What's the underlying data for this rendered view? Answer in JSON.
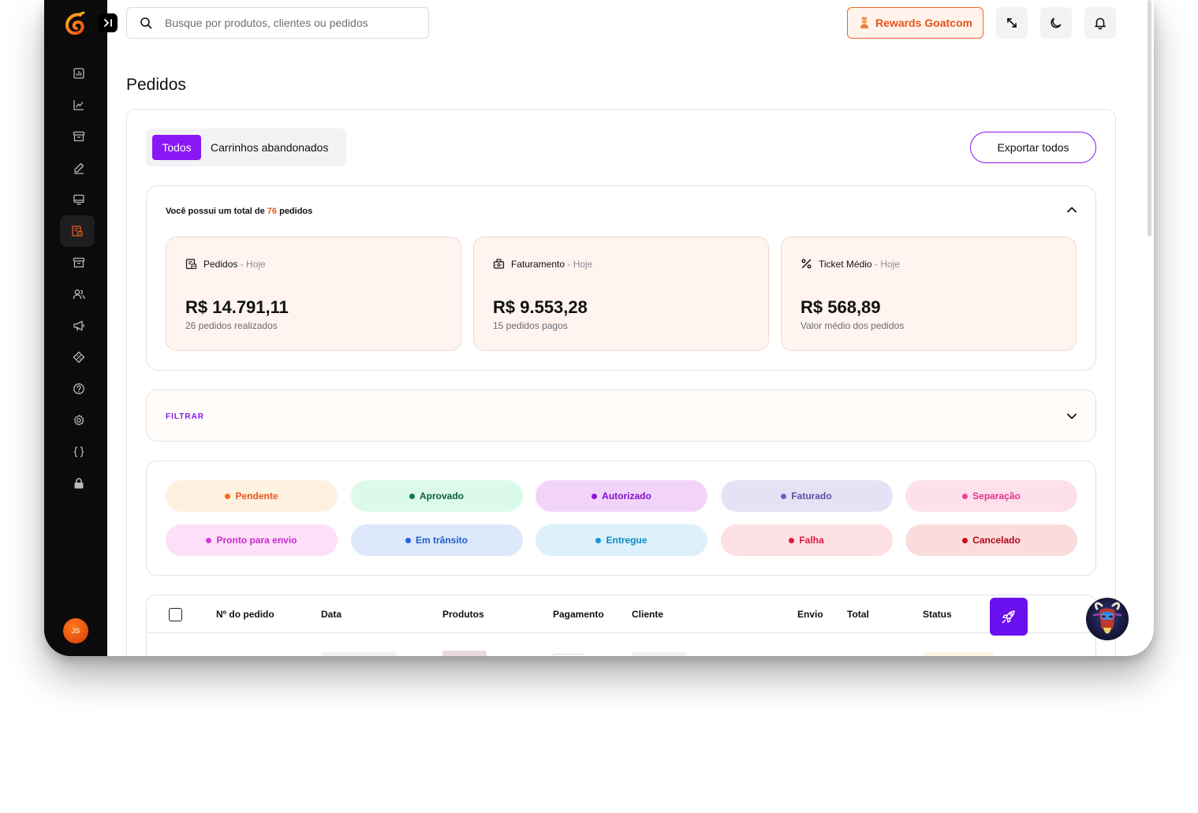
{
  "search": {
    "placeholder": "Busque por produtos, clientes ou pedidos"
  },
  "header": {
    "rewards_label": "Rewards Goatcom",
    "icons": [
      "expand-icon",
      "moon-icon",
      "bell-icon"
    ]
  },
  "sidebar": {
    "collapse_icon": "collapse-icon",
    "items": [
      {
        "name": "dashboard",
        "icon": "bar-chart-icon"
      },
      {
        "name": "analytics",
        "icon": "line-chart-icon"
      },
      {
        "name": "products",
        "icon": "archive-icon"
      },
      {
        "name": "edit",
        "icon": "pencil-icon"
      },
      {
        "name": "store",
        "icon": "monitor-icon"
      },
      {
        "name": "orders",
        "icon": "orders-icon",
        "active": true
      },
      {
        "name": "inventory",
        "icon": "box-icon"
      },
      {
        "name": "customers",
        "icon": "users-icon"
      },
      {
        "name": "marketing",
        "icon": "megaphone-icon"
      },
      {
        "name": "coupons",
        "icon": "ticket-icon"
      },
      {
        "name": "help",
        "icon": "help-icon"
      },
      {
        "name": "settings",
        "icon": "gear-icon"
      },
      {
        "name": "code",
        "icon": "braces-icon"
      },
      {
        "name": "lock",
        "icon": "lock-icon"
      }
    ],
    "avatar_initials": "JS"
  },
  "page": {
    "title": "Pedidos"
  },
  "tabs": {
    "all": "Todos",
    "abandoned": "Carrinhos abandonados"
  },
  "export_label": "Exportar todos",
  "summary": {
    "prefix": "Você possui um total de",
    "count": "76",
    "suffix": "pedidos",
    "cards": [
      {
        "title": "Pedidos",
        "period": "- Hoje",
        "value": "R$ 14.791,11",
        "desc": "26 pedidos realizados",
        "icon": "orders-icon"
      },
      {
        "title": "Faturamento",
        "period": "- Hoje",
        "value": "R$ 9.553,28",
        "desc": "15 pedidos pagos",
        "icon": "cash-register-icon"
      },
      {
        "title": "Ticket Médio",
        "period": "- Hoje",
        "value": "R$ 568,89",
        "desc": "Valor médio dos pedidos",
        "icon": "percent-icon"
      }
    ]
  },
  "filter": {
    "label": "FILTRAR"
  },
  "statuses": [
    {
      "label": "Pendente",
      "bg": "#fff1e0",
      "fg": "#e8541a",
      "dot": "#f56b16"
    },
    {
      "label": "Aprovado",
      "bg": "#dcfaea",
      "fg": "#0d5e3a",
      "dot": "#11794a"
    },
    {
      "label": "Autorizado",
      "bg": "#f2d4fb",
      "fg": "#8110c7",
      "dot": "#8f10d6"
    },
    {
      "label": "Faturado",
      "bg": "#e5e2f5",
      "fg": "#5a4fa6",
      "dot": "#6d5fc2"
    },
    {
      "label": "Separação",
      "bg": "#fde0ec",
      "fg": "#e0348a",
      "dot": "#ef3f95"
    },
    {
      "label": "Pronto para envio",
      "bg": "#fde0f7",
      "fg": "#c62ad0",
      "dot": "#d43ad8"
    },
    {
      "label": "Em trânsito",
      "bg": "#dde8fb",
      "fg": "#1d5ec9",
      "dot": "#1f66dd"
    },
    {
      "label": "Entregue",
      "bg": "#dcf1fb",
      "fg": "#0e8ac2",
      "dot": "#0f97d4"
    },
    {
      "label": "Falha",
      "bg": "#fde0e3",
      "fg": "#dd1840",
      "dot": "#e3163f"
    },
    {
      "label": "Cancelado",
      "bg": "#fbdcdc",
      "fg": "#b3071b",
      "dot": "#c40a1a"
    }
  ],
  "table": {
    "columns": [
      "Nº do pedido",
      "Data",
      "Produtos",
      "Pagamento",
      "Cliente",
      "Envio",
      "Total",
      "Status"
    ]
  },
  "colors": {
    "accent": "#8a17f5",
    "brand_orange": "#e8541a"
  }
}
